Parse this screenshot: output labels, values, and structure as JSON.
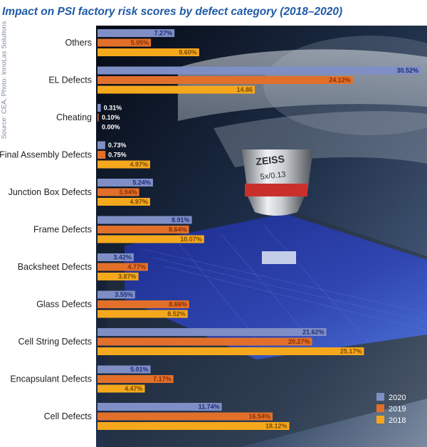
{
  "chart_data": {
    "type": "bar",
    "orientation": "horizontal",
    "title": "Impact on PSI factory risk scores by defect category (2018–2020)",
    "source": "Source: CEA, Photo: InnoLas Solutions",
    "categories": [
      "Others",
      "EL Defects",
      "Cheating",
      "Final Assembly Defects",
      "Junction Box Defects",
      "Frame Defects",
      "Backsheet Defects",
      "Glass Defects",
      "Cell String Defects",
      "Encapsulant Defects",
      "Cell Defects"
    ],
    "series": [
      {
        "name": "2020",
        "color": "#7f8fc6",
        "values": [
          7.27,
          30.52,
          0.31,
          0.73,
          5.24,
          8.91,
          3.42,
          3.55,
          21.62,
          5.01,
          11.74
        ],
        "labels": [
          "7.27%",
          "30.52%",
          "0.31%",
          "0.73%",
          "5.24%",
          "8.91%",
          "3.42%",
          "3.55%",
          "21.62%",
          "5.01%",
          "11.74%"
        ]
      },
      {
        "name": "2019",
        "color": "#e2702b",
        "values": [
          5.05,
          24.12,
          0.1,
          0.75,
          3.94,
          8.64,
          4.77,
          8.66,
          20.27,
          7.17,
          16.54
        ],
        "labels": [
          "5.05%",
          "24.12%",
          "0.10%",
          "0.75%",
          "3.94%",
          "8.64%",
          "4.77%",
          "8.66%",
          "20.27%",
          "7.17%",
          "16.54%"
        ]
      },
      {
        "name": "2018",
        "color": "#f6a81d",
        "values": [
          9.6,
          14.86,
          0.0,
          4.97,
          4.97,
          10.07,
          3.87,
          8.52,
          25.17,
          4.47,
          18.12
        ],
        "labels": [
          "9.60%",
          "14.86",
          "0.00%",
          "4.97%",
          "4.97%",
          "10.07%",
          "3.87%",
          "8.52%",
          "25.17%",
          "4.47%",
          "18.12%"
        ]
      }
    ],
    "xlim": [
      0,
      30.52
    ],
    "legend": "bottom-right",
    "grid": false
  }
}
